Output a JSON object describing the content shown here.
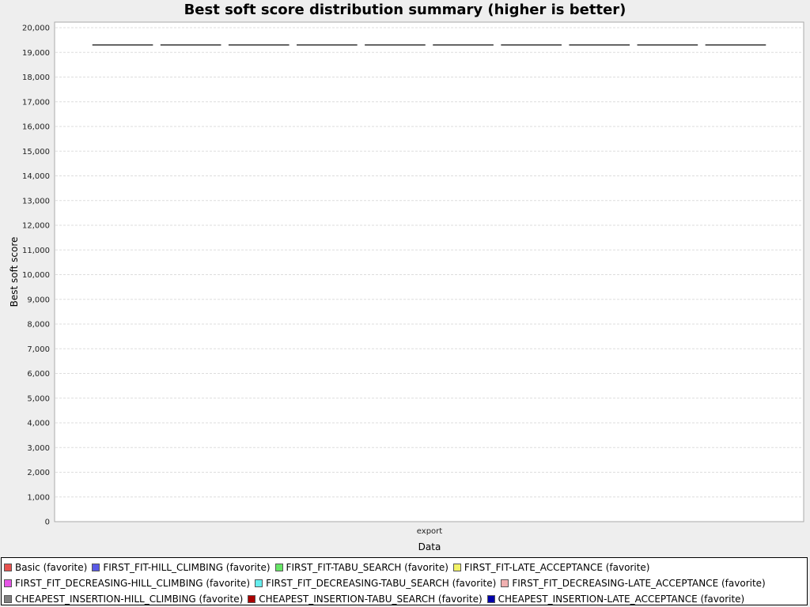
{
  "chart_data": {
    "type": "boxplot",
    "title": "Best soft score distribution summary (higher is better)",
    "xlabel": "Data",
    "ylabel": "Best soft score",
    "categories": [
      "export"
    ],
    "ylim": [
      0,
      20000
    ],
    "yticks": [
      0,
      1000,
      2000,
      3000,
      4000,
      5000,
      6000,
      7000,
      8000,
      9000,
      10000,
      11000,
      12000,
      13000,
      14000,
      15000,
      16000,
      17000,
      18000,
      19000,
      20000
    ],
    "ytick_labels": [
      "0",
      "1,000",
      "2,000",
      "3,000",
      "4,000",
      "5,000",
      "6,000",
      "7,000",
      "8,000",
      "9,000",
      "10,000",
      "11,000",
      "12,000",
      "13,000",
      "14,000",
      "15,000",
      "16,000",
      "17,000",
      "18,000",
      "19,000",
      "20,000"
    ],
    "grid": true,
    "legend_position": "bottom",
    "series": [
      {
        "name": "Basic (favorite)",
        "color": "#e8524f",
        "values": [
          19300
        ]
      },
      {
        "name": "FIRST_FIT-HILL_CLIMBING (favorite)",
        "color": "#5a5ae6",
        "values": [
          19300
        ]
      },
      {
        "name": "FIRST_FIT-TABU_SEARCH (favorite)",
        "color": "#66e666",
        "values": [
          19300
        ]
      },
      {
        "name": "FIRST_FIT-LATE_ACCEPTANCE (favorite)",
        "color": "#f2f266",
        "values": [
          19300
        ]
      },
      {
        "name": "FIRST_FIT_DECREASING-HILL_CLIMBING (favorite)",
        "color": "#e655e6",
        "values": [
          19300
        ]
      },
      {
        "name": "FIRST_FIT_DECREASING-TABU_SEARCH (favorite)",
        "color": "#66eeee",
        "values": [
          19300
        ]
      },
      {
        "name": "FIRST_FIT_DECREASING-LATE_ACCEPTANCE (favorite)",
        "color": "#f0b0b0",
        "values": [
          19300
        ]
      },
      {
        "name": "CHEAPEST_INSERTION-HILL_CLIMBING (favorite)",
        "color": "#808080",
        "values": [
          19300
        ]
      },
      {
        "name": "CHEAPEST_INSERTION-TABU_SEARCH (favorite)",
        "color": "#aa0000",
        "values": [
          19300
        ]
      },
      {
        "name": "CHEAPEST_INSERTION-LATE_ACCEPTANCE (favorite)",
        "color": "#0000aa",
        "values": [
          19300
        ]
      }
    ]
  }
}
